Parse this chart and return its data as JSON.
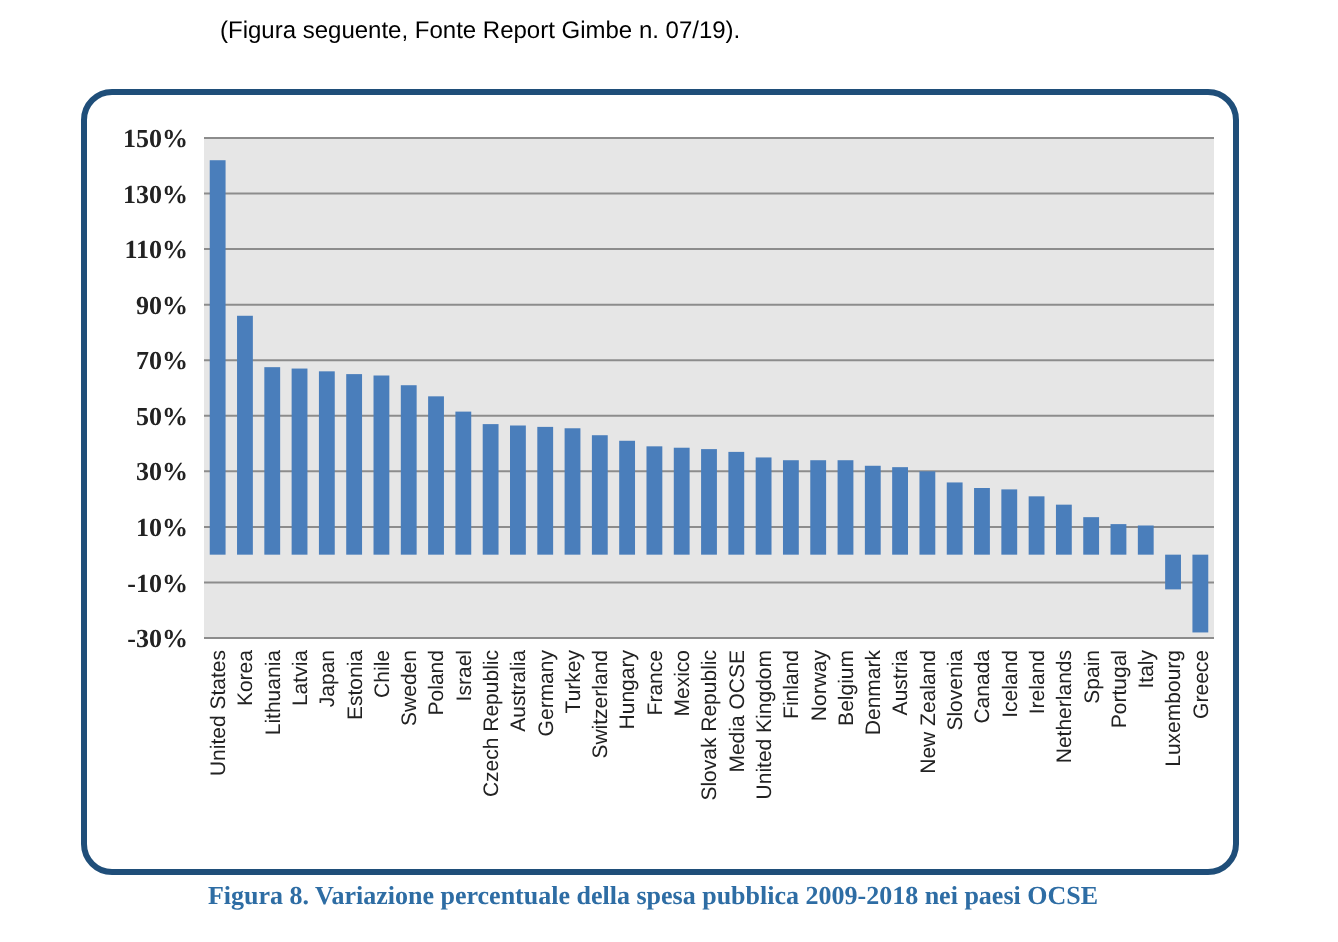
{
  "chart_data": {
    "type": "bar",
    "title": "Figura 8. Variazione percentuale della spesa pubblica 2009-2018 nei paesi OCSE",
    "annotations": [
      "(Figura seguente, Fonte   Report Gimbe n. 07/19)."
    ],
    "categories": [
      "United States",
      "Korea",
      "Lithuania",
      "Latvia",
      "Japan",
      "Estonia",
      "Chile",
      "Sweden",
      "Poland",
      "Israel",
      "Czech Republic",
      "Australia",
      "Germany",
      "Turkey",
      "Switzerland",
      "Hungary",
      "France",
      "Mexico",
      "Slovak Republic",
      "Media OCSE",
      "United Kingdom",
      "Finland",
      "Norway",
      "Belgium",
      "Denmark",
      "Austria",
      "New Zealand",
      "Slovenia",
      "Canada",
      "Iceland",
      "Ireland",
      "Netherlands",
      "Spain",
      "Portugal",
      "Italy",
      "Luxembourg",
      "Greece"
    ],
    "values": [
      142,
      86,
      67.5,
      67,
      66,
      65,
      64.5,
      61,
      57,
      51.5,
      47,
      46.5,
      46,
      45.5,
      43,
      41,
      39,
      38.5,
      38,
      37,
      35,
      34,
      34,
      34,
      32,
      31.5,
      30,
      26,
      24,
      23.5,
      21,
      18,
      13.5,
      11,
      10.5,
      -12.5,
      -28
    ],
    "color": "#4a7ebb",
    "ylim": [
      -30,
      150
    ],
    "yticks": [
      {
        "value": -30,
        "label": "-30%"
      },
      {
        "value": -10,
        "label": "-10%"
      },
      {
        "value": 10,
        "label": "10%"
      },
      {
        "value": 30,
        "label": "30%"
      },
      {
        "value": 50,
        "label": "50%"
      },
      {
        "value": 70,
        "label": "70%"
      },
      {
        "value": 90,
        "label": "90%"
      },
      {
        "value": 110,
        "label": "110%"
      },
      {
        "value": 130,
        "label": "130%"
      },
      {
        "value": 150,
        "label": "150%"
      }
    ],
    "grid": "y"
  }
}
